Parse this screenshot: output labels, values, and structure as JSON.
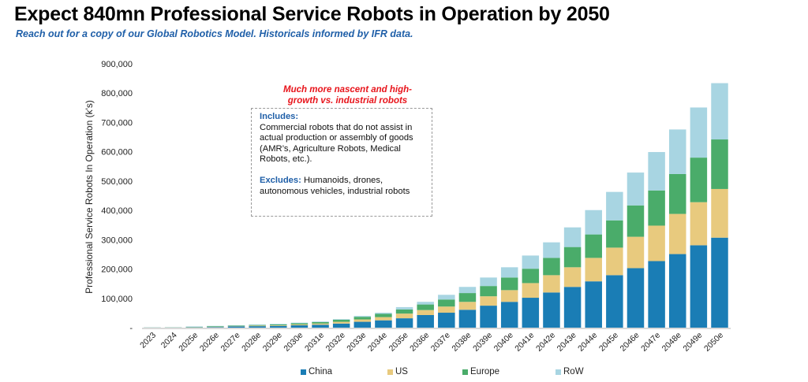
{
  "header": {
    "title": "Expect 840mn Professional Service Robots in Operation by 2050",
    "subtitle": "Reach out for a copy of our Global Robotics Model. Historicals informed by IFR data."
  },
  "callout": {
    "headline_line1": "Much more nascent and high-",
    "headline_line2": "growth vs. industrial robots",
    "includes_label": "Includes:",
    "includes_text": "Commercial robots that do not assist in actual production or assembly of goods (AMR’s, Agriculture Robots, Medical Robots, etc.).",
    "excludes_label": "Excludes:",
    "excludes_text": " Humanoids, drones, autonomous vehicles, industrial robots"
  },
  "colors": {
    "China": "#1a7db5",
    "US": "#e8ca7e",
    "Europe": "#4aac6a",
    "RoW": "#a8d5e2",
    "axis": "#d9d9d9"
  },
  "chart_data": {
    "type": "bar",
    "stacked": true,
    "title": "Expect 840mn Professional Service Robots in Operation by 2050",
    "xlabel": "",
    "ylabel": "Professional Service Robots In Operation (k's)",
    "ylim": [
      0,
      900000
    ],
    "yticks": [
      0,
      100000,
      200000,
      300000,
      400000,
      500000,
      600000,
      700000,
      800000,
      900000
    ],
    "ytick_labels": [
      "-",
      "100,000",
      "200,000",
      "300,000",
      "400,000",
      "500,000",
      "600,000",
      "700,000",
      "800,000",
      "900,000"
    ],
    "grid": false,
    "legend_position": "bottom",
    "categories": [
      "2023",
      "2024",
      "2025e",
      "2026e",
      "2027e",
      "2028e",
      "2029e",
      "2030e",
      "2031e",
      "2032e",
      "2033e",
      "2034e",
      "2035e",
      "2036e",
      "2037e",
      "2038e",
      "2039e",
      "2040e",
      "2041e",
      "2042e",
      "2043e",
      "2044e",
      "2045e",
      "2046e",
      "2047e",
      "2048e",
      "2049e",
      "2050e"
    ],
    "series": [
      {
        "name": "China",
        "values": [
          400,
          500,
          1000,
          2000,
          4000,
          5000,
          6000,
          8000,
          10000,
          14000,
          20000,
          25000,
          32000,
          43000,
          51000,
          61000,
          75000,
          88000,
          102000,
          120000,
          139000,
          158000,
          179000,
          203000,
          227000,
          251000,
          281000,
          307000
        ]
      },
      {
        "name": "US",
        "values": [
          200,
          300,
          500,
          1000,
          1000,
          2000,
          2000,
          3000,
          4000,
          6000,
          8000,
          11000,
          16000,
          17000,
          21000,
          27000,
          32000,
          40000,
          50000,
          59000,
          67000,
          80000,
          94000,
          107000,
          121000,
          137000,
          147000,
          166000
        ]
      },
      {
        "name": "Europe",
        "values": [
          300,
          400,
          1000,
          2000,
          2000,
          2000,
          3000,
          4000,
          5000,
          7000,
          9000,
          11000,
          14000,
          19000,
          24000,
          30000,
          35000,
          43000,
          49000,
          59000,
          69000,
          80000,
          93000,
          107000,
          120000,
          136000,
          152000,
          169000
        ]
      },
      {
        "name": "RoW",
        "values": [
          200,
          300,
          1500,
          1000,
          1000,
          2000,
          2000,
          2000,
          2000,
          2000,
          3000,
          4000,
          8000,
          9000,
          16000,
          21000,
          29000,
          35000,
          45000,
          53000,
          67000,
          83000,
          97000,
          112000,
          131000,
          152000,
          171000,
          192000
        ]
      }
    ]
  }
}
